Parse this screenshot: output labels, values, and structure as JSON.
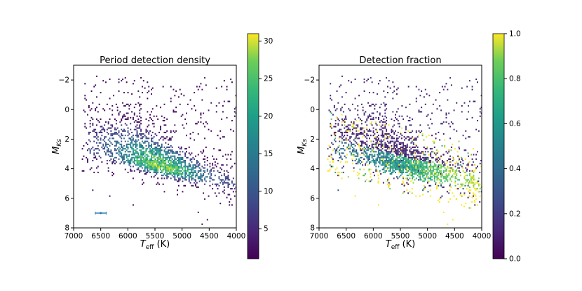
{
  "chart_data": [
    {
      "type": "heatmap",
      "title": "Period detection density",
      "xlabel_main": "T",
      "xlabel_sub": "eff",
      "xlabel_unit": " (K)",
      "ylabel_main": "M",
      "ylabel_sub": "Ks",
      "xlim": [
        7000,
        4000
      ],
      "ylim": [
        8,
        -3
      ],
      "xticks": [
        7000,
        6500,
        6000,
        5500,
        5000,
        4500,
        4000
      ],
      "yticks": [
        -2,
        0,
        2,
        4,
        6,
        8
      ],
      "colorbar": {
        "min": 1,
        "max": 31,
        "ticks": [
          5,
          10,
          15,
          20,
          25,
          30
        ],
        "colormap": "viridis"
      },
      "density_model": {
        "main_sequence_ridge": [
          [
            6700,
            2.6
          ],
          [
            6000,
            3.2
          ],
          [
            5500,
            3.7
          ],
          [
            5000,
            4.1
          ],
          [
            4500,
            4.5
          ],
          [
            4000,
            4.9
          ]
        ],
        "peak_value": 31,
        "peak_location": [
          5400,
          3.8
        ]
      },
      "error_bar": {
        "x": 6500,
        "y": 7.0,
        "x_err": 100,
        "color": "#1f77b4"
      }
    },
    {
      "type": "heatmap",
      "title": "Detection fraction",
      "xlabel_main": "T",
      "xlabel_sub": "eff",
      "xlabel_unit": " (K)",
      "ylabel_main": "M",
      "ylabel_sub": "Ks",
      "xlim": [
        7000,
        4000
      ],
      "ylim": [
        8,
        -3
      ],
      "xticks": [
        7000,
        6500,
        6000,
        5500,
        5000,
        4500,
        4000
      ],
      "yticks": [
        -2,
        0,
        2,
        4,
        6,
        8
      ],
      "colorbar": {
        "min": 0.0,
        "max": 1.0,
        "ticks": [
          0.0,
          0.2,
          0.4,
          0.6,
          0.8,
          1.0
        ],
        "colormap": "viridis"
      },
      "fraction_model": {
        "giant_branch_fraction": 0.05,
        "main_sequence_hot_end": 0.25,
        "main_sequence_cool_end": 0.9
      }
    }
  ]
}
